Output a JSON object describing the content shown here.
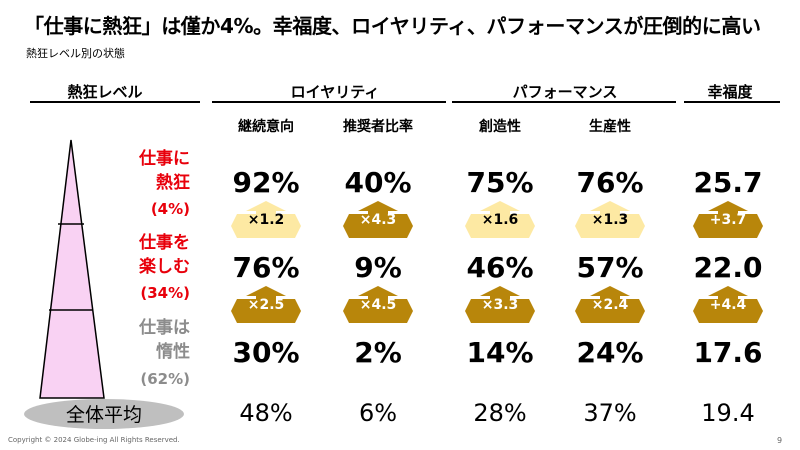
{
  "title": "「仕事に熱狂」は僅か4%。幸福度、ロイヤリティ、パフォーマンスが圧倒的に高い",
  "subtitle": "熱狂レベル別の状態",
  "headers": {
    "level": "熱狂レベル",
    "loyalty": "ロイヤリティ",
    "performance": "パフォーマンス",
    "happiness": "幸福度"
  },
  "subheaders": [
    "継続意向",
    "推奨者比率",
    "創造性",
    "生産性"
  ],
  "levels": [
    {
      "line1": "仕事に",
      "line2": "熱狂",
      "pct": "(4%)",
      "color": "#e8000b"
    },
    {
      "line1": "仕事を",
      "line2": "楽しむ",
      "pct": "(34%)",
      "color": "#e8000b"
    },
    {
      "line1": "仕事は",
      "line2": "惰性",
      "pct": "(62%)",
      "color": "#8c8c8c"
    }
  ],
  "values": {
    "row_enthusiastic": [
      "92%",
      "40%",
      "75%",
      "76%",
      "25.7"
    ],
    "row_enjoy": [
      "76%",
      "9%",
      "46%",
      "57%",
      "22.0"
    ],
    "row_inertia": [
      "30%",
      "2%",
      "14%",
      "24%",
      "17.6"
    ]
  },
  "multipliers": {
    "upper": [
      "×1.2",
      "×4.3",
      "×1.6",
      "×1.3",
      "+3.7"
    ],
    "lower": [
      "×2.5",
      "×4.5",
      "×3.3",
      "×2.4",
      "+4.4"
    ]
  },
  "average": {
    "label": "全体平均",
    "values": [
      "48%",
      "6%",
      "28%",
      "37%",
      "19.4"
    ]
  },
  "colors": {
    "arrow_light": "#fde9a3",
    "arrow_dark": "#b8860b",
    "pyramid_fill": "#f9d2f3",
    "average_oval": "#bfbfbf"
  },
  "footer": "Copyright © 2024 Globe-ing All Rights Reserved.",
  "page_number": "9"
}
